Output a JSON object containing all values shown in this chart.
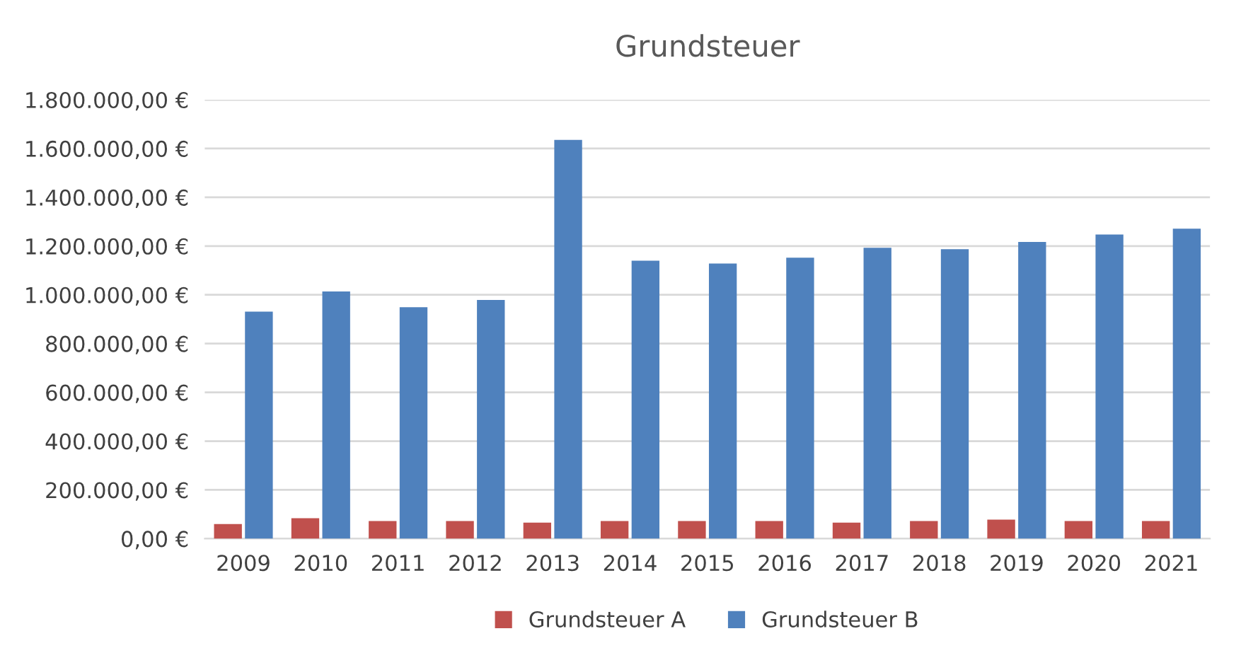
{
  "chart_data": {
    "type": "bar",
    "title": "Grundsteuer",
    "categories": [
      "2009",
      "2010",
      "2011",
      "2012",
      "2013",
      "2014",
      "2015",
      "2016",
      "2017",
      "2018",
      "2019",
      "2020",
      "2021"
    ],
    "series": [
      {
        "name": "Grundsteuer A",
        "color": "#c0504d",
        "values": [
          60000,
          84000,
          72000,
          72000,
          66000,
          72000,
          72000,
          72000,
          66000,
          72000,
          78000,
          72000,
          72000
        ]
      },
      {
        "name": "Grundsteuer B",
        "color": "#4f81bd",
        "values": [
          931000,
          1014000,
          949000,
          979000,
          1635000,
          1140000,
          1128000,
          1152000,
          1193000,
          1187000,
          1217000,
          1247000,
          1271000
        ]
      }
    ],
    "ylim": [
      0,
      1800000
    ],
    "yticks": [
      {
        "value": 0,
        "label": "0,00 €"
      },
      {
        "value": 200000,
        "label": "200.000,00 €"
      },
      {
        "value": 400000,
        "label": "400.000,00 €"
      },
      {
        "value": 600000,
        "label": "600.000,00 €"
      },
      {
        "value": 800000,
        "label": "800.000,00 €"
      },
      {
        "value": 1000000,
        "label": "1.000.000,00 €"
      },
      {
        "value": 1200000,
        "label": "1.200.000,00 €"
      },
      {
        "value": 1400000,
        "label": "1.400.000,00 €"
      },
      {
        "value": 1600000,
        "label": "1.600.000,00 €"
      },
      {
        "value": 1800000,
        "label": "1.800.000,00 €"
      }
    ],
    "grid": "y",
    "legend": "bottom"
  }
}
